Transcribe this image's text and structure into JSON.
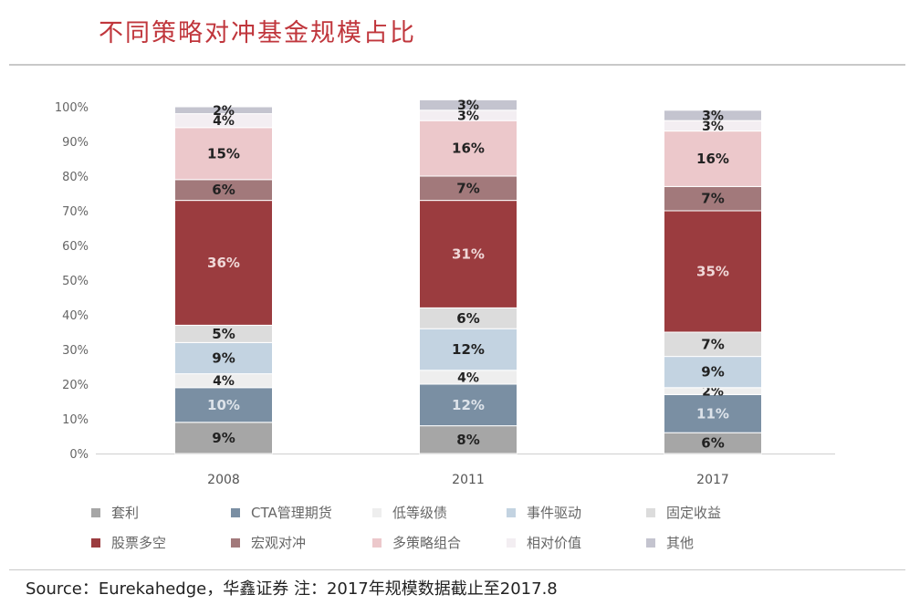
{
  "title": "不同策略对冲基金规模占比",
  "source": "Source：Eurekahedge，华鑫证券 注：2017年规模数据截止至2017.8",
  "chart_data": {
    "type": "bar",
    "stacked": true,
    "categories": [
      "2008",
      "2011",
      "2017"
    ],
    "yticks": [
      "0%",
      "10%",
      "20%",
      "30%",
      "40%",
      "50%",
      "60%",
      "70%",
      "80%",
      "90%",
      "100%"
    ],
    "ylim": [
      0,
      100
    ],
    "series": [
      {
        "name": "套利",
        "color": "#a6a6a6",
        "label_color": "#222222",
        "values": [
          9,
          8,
          6
        ]
      },
      {
        "name": "CTA管理期货",
        "color": "#7a8fa3",
        "label_color": "#dde3ea",
        "values": [
          10,
          12,
          11
        ]
      },
      {
        "name": "低等级债",
        "color": "#eeeeee",
        "label_color": "#222222",
        "values": [
          4,
          4,
          2
        ]
      },
      {
        "name": "事件驱动",
        "color": "#c3d3e1",
        "label_color": "#222222",
        "values": [
          9,
          12,
          9
        ]
      },
      {
        "name": "固定收益",
        "color": "#dcdcdc",
        "label_color": "#222222",
        "values": [
          5,
          6,
          7
        ]
      },
      {
        "name": "股票多空",
        "color": "#9b3c3f",
        "label_color": "#f0d8d8",
        "values": [
          36,
          31,
          35
        ]
      },
      {
        "name": "宏观对冲",
        "color": "#a2797b",
        "label_color": "#222222",
        "values": [
          6,
          7,
          7
        ]
      },
      {
        "name": "多策略组合",
        "color": "#ecc8cb",
        "label_color": "#222222",
        "values": [
          15,
          16,
          16
        ]
      },
      {
        "name": "相对价值",
        "color": "#f3eef2",
        "label_color": "#222222",
        "values": [
          4,
          3,
          3
        ]
      },
      {
        "name": "其他",
        "color": "#c4c4cf",
        "label_color": "#222222",
        "values": [
          2,
          3,
          3
        ]
      }
    ],
    "legend_position": "bottom"
  }
}
